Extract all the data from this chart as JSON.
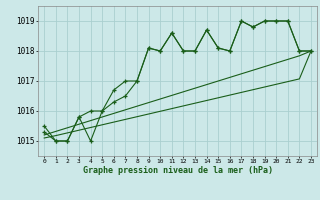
{
  "title": "Graphe pression niveau de la mer (hPa)",
  "background_color": "#cce8e8",
  "grid_color": "#aacfcf",
  "line_color": "#1a5e1a",
  "x_labels": [
    "0",
    "1",
    "2",
    "3",
    "4",
    "5",
    "6",
    "7",
    "8",
    "9",
    "10",
    "11",
    "12",
    "13",
    "14",
    "15",
    "16",
    "17",
    "18",
    "19",
    "20",
    "21",
    "22",
    "23"
  ],
  "ylim": [
    1014.5,
    1019.5
  ],
  "yticks": [
    1015,
    1016,
    1017,
    1018,
    1019
  ],
  "series1": [
    1015.3,
    1015.0,
    1015.0,
    1015.8,
    1015.0,
    1016.0,
    1016.7,
    1017.0,
    1017.0,
    1018.1,
    1018.0,
    1018.6,
    1018.0,
    1018.0,
    1018.7,
    1018.1,
    1018.0,
    1019.0,
    1018.8,
    1019.0,
    1019.0,
    1019.0,
    1018.0,
    1018.0
  ],
  "series2": [
    1015.5,
    1015.0,
    1015.0,
    1015.8,
    1016.0,
    1016.0,
    1016.3,
    1016.5,
    1017.0,
    1018.1,
    1018.0,
    1018.6,
    1018.0,
    1018.0,
    1018.7,
    1018.1,
    1018.0,
    1019.0,
    1018.8,
    1019.0,
    1019.0,
    1019.0,
    1018.0,
    1018.0
  ],
  "series_linear1": [
    1015.1,
    1015.18,
    1015.27,
    1015.36,
    1015.45,
    1015.54,
    1015.63,
    1015.72,
    1015.81,
    1015.9,
    1015.99,
    1016.08,
    1016.17,
    1016.26,
    1016.35,
    1016.44,
    1016.53,
    1016.62,
    1016.71,
    1016.8,
    1016.89,
    1016.98,
    1017.07,
    1018.0
  ],
  "series_linear2": [
    1015.2,
    1015.32,
    1015.44,
    1015.56,
    1015.68,
    1015.8,
    1015.92,
    1016.04,
    1016.16,
    1016.28,
    1016.4,
    1016.52,
    1016.64,
    1016.76,
    1016.88,
    1017.0,
    1017.12,
    1017.24,
    1017.36,
    1017.48,
    1017.6,
    1017.72,
    1017.84,
    1018.0
  ]
}
